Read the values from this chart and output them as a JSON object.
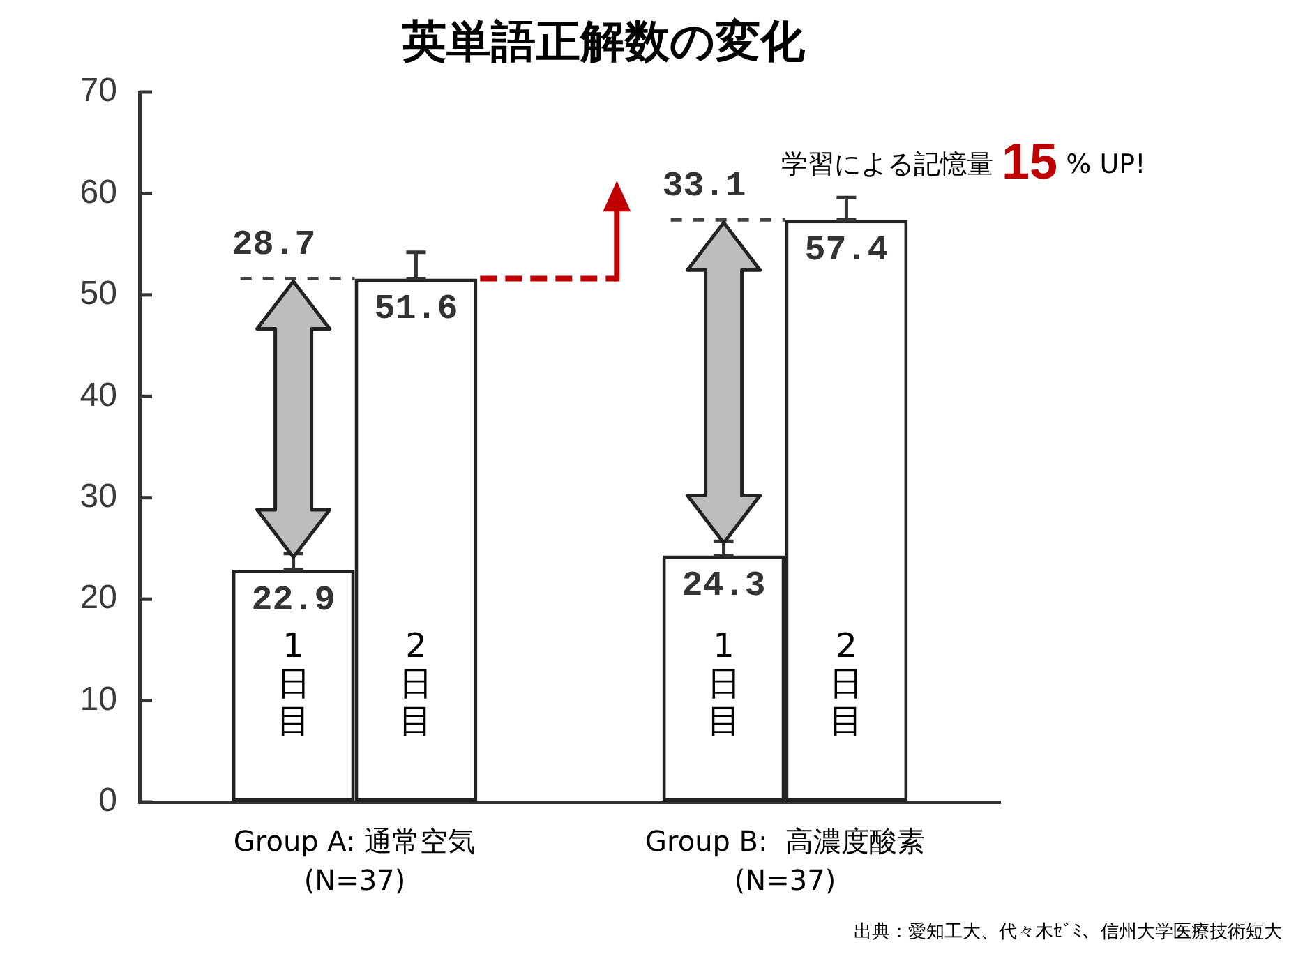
{
  "chart_data": {
    "type": "bar",
    "title": "英単語正解数の変化",
    "categories": [
      "Group A: 通常空気\n(N=37)",
      "Group B:  高濃度酸素\n(N=37)"
    ],
    "series": [
      {
        "name": "1日目",
        "color": "#222222",
        "values": [
          22.9,
          24.3
        ],
        "errors": [
          [
            22.9,
            24.5
          ],
          [
            24.3,
            25.7
          ]
        ]
      },
      {
        "name": "2日目",
        "color": "#222222",
        "values": [
          51.6,
          57.4
        ],
        "errors": [
          [
            51.6,
            54.2
          ],
          [
            57.4,
            59.6
          ]
        ]
      }
    ],
    "ylim": [
      0,
      70
    ],
    "yticks": [
      0,
      10,
      20,
      30,
      40,
      50,
      60,
      70
    ],
    "data_labels": true,
    "annotations": [
      {
        "text": "28.7",
        "x": "Group A: 通常空気\n(N=37)",
        "y": 51.6
      },
      {
        "text": "33.1",
        "x": "Group B:  高濃度酸素\n(N=37)",
        "y": 57.4
      },
      "学習による記憶量 15 % UP!",
      "出典：愛知工大、代々木ｾﾞﾐ、信州大学医療技術短大"
    ]
  }
}
